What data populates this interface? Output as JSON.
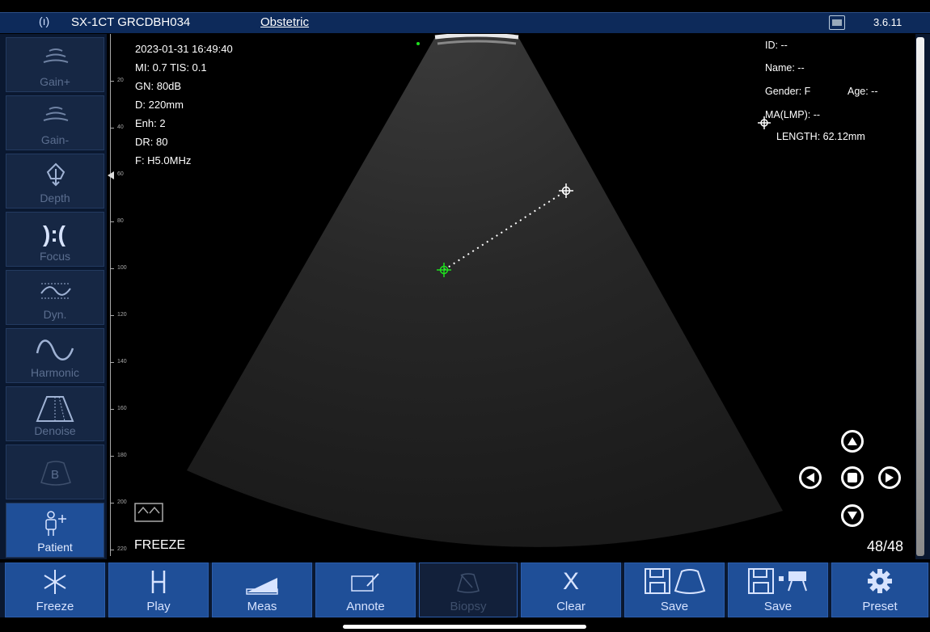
{
  "topbar": {
    "device": "SX-1CT GRCDBH034",
    "mode": "Obstetric",
    "version": "3.6.11"
  },
  "sidebar": {
    "buttons": [
      {
        "label": "Gain+",
        "icon": "gain-up-icon"
      },
      {
        "label": "Gain-",
        "icon": "gain-down-icon"
      },
      {
        "label": "Depth",
        "icon": "depth-icon"
      },
      {
        "label": "Focus",
        "icon": "focus-icon"
      },
      {
        "label": "Dyn.",
        "icon": "dynamic-range-icon"
      },
      {
        "label": "Harmonic",
        "icon": "harmonic-icon"
      },
      {
        "label": "Denoise",
        "icon": "denoise-icon"
      },
      {
        "label": "",
        "icon": "b-mode-icon",
        "glyph": "B"
      },
      {
        "label": "Patient",
        "icon": "patient-icon"
      }
    ]
  },
  "ruler": {
    "labels": [
      "20",
      "40",
      "60",
      "80",
      "100",
      "120",
      "140",
      "160",
      "180",
      "200",
      "220"
    ]
  },
  "scan_info": {
    "datetime": "2023-01-31 16:49:40",
    "mi_tis": "MI: 0.7  TIS: 0.1",
    "gain": "GN: 80dB",
    "depth": "D: 220mm",
    "enhance": "Enh: 2",
    "dynamic_range": "DR: 80",
    "frequency": "F: H5.0MHz"
  },
  "patient_info": {
    "id": "ID: --",
    "name": "Name: --",
    "gender": "Gender: F",
    "age": "Age: --",
    "ma_lmp": "MA(LMP): --",
    "length": "LENGTH: 62.12mm"
  },
  "status": {
    "freeze_label": "FREEZE",
    "frame_counter": "48/48"
  },
  "bottombar": {
    "buttons": [
      {
        "label": "Freeze",
        "icon": "snowflake-icon"
      },
      {
        "label": "Play",
        "icon": "play-cine-icon"
      },
      {
        "label": "Meas",
        "icon": "measure-ruler-icon"
      },
      {
        "label": "Annote",
        "icon": "annotate-icon"
      },
      {
        "label": "Biopsy",
        "icon": "biopsy-icon"
      },
      {
        "label": "Clear",
        "icon": "clear-icon",
        "glyph": "X"
      },
      {
        "label": "Save",
        "icon": "save-image-icon"
      },
      {
        "label": "Save",
        "icon": "save-video-icon"
      },
      {
        "label": "Preset",
        "icon": "gear-icon"
      }
    ]
  },
  "colors": {
    "topbar": "#0d2a5a",
    "button_active": "#1f4f98",
    "button_inactive": "#162744",
    "caliper_active": "#1ee01e"
  }
}
